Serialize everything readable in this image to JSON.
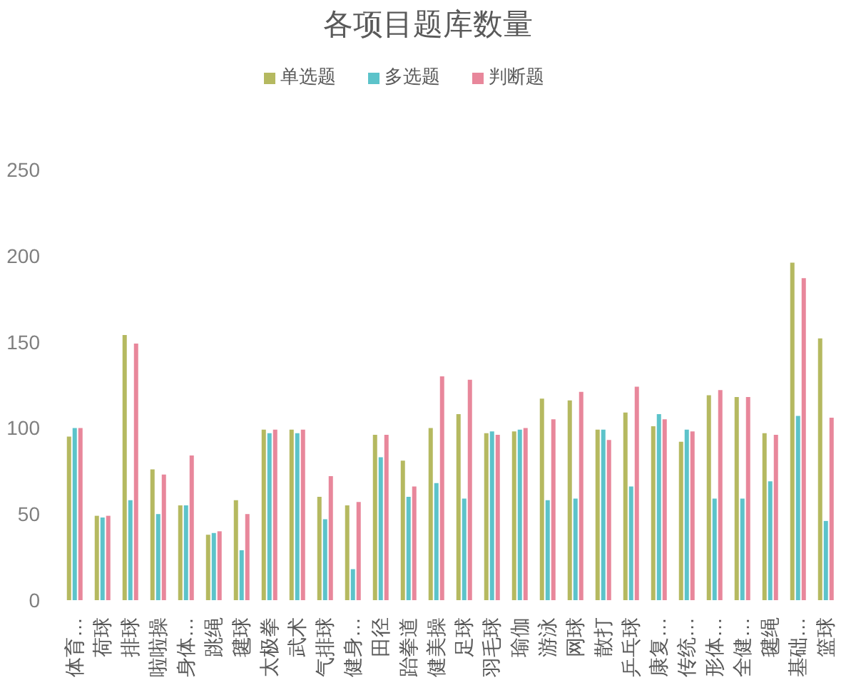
{
  "chart_data": {
    "type": "bar",
    "title": "各项目题库数量",
    "legend": "top",
    "categories": [
      "体育…",
      "荷球",
      "排球",
      "啦啦操",
      "身体…",
      "跳绳",
      "毽球",
      "太极拳",
      "武术",
      "气排球",
      "健身…",
      "田径",
      "跆拳道",
      "健美操",
      "足球",
      "羽毛球",
      "瑜伽",
      "游泳",
      "网球",
      "散打",
      "乒乓球",
      "康复…",
      "传统…",
      "形体…",
      "全健…",
      "毽绳",
      "基础…",
      "篮球"
    ],
    "series": [
      {
        "name": "单选题",
        "color": "#b5b960",
        "values": [
          95,
          49,
          154,
          76,
          55,
          38,
          58,
          99,
          99,
          60,
          55,
          96,
          81,
          100,
          108,
          97,
          98,
          117,
          116,
          99,
          109,
          101,
          92,
          119,
          118,
          97,
          196,
          152
        ]
      },
      {
        "name": "多选题",
        "color": "#5cc3ca",
        "values": [
          100,
          48,
          58,
          50,
          55,
          39,
          29,
          97,
          97,
          47,
          18,
          83,
          60,
          68,
          59,
          98,
          99,
          58,
          59,
          99,
          66,
          108,
          99,
          59,
          59,
          69,
          107,
          46
        ]
      },
      {
        "name": "判断题",
        "color": "#e8879b",
        "values": [
          100,
          49,
          149,
          73,
          84,
          40,
          50,
          99,
          99,
          72,
          57,
          96,
          66,
          130,
          128,
          96,
          100,
          105,
          121,
          93,
          124,
          105,
          98,
          122,
          118,
          96,
          187,
          106
        ]
      }
    ],
    "ylim": [
      0,
      250
    ],
    "yticks": [
      0,
      50,
      100,
      150,
      200,
      250
    ]
  }
}
